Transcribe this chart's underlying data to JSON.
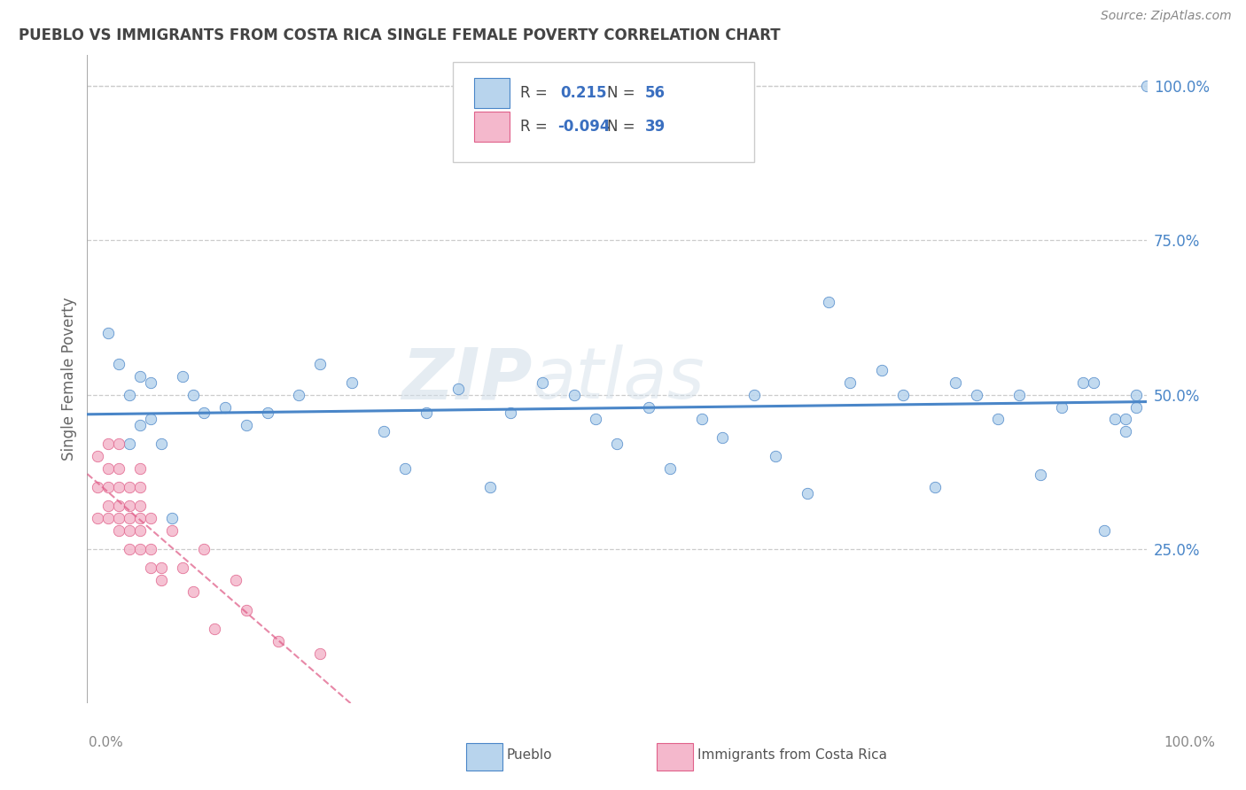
{
  "title": "PUEBLO VS IMMIGRANTS FROM COSTA RICA SINGLE FEMALE POVERTY CORRELATION CHART",
  "source": "Source: ZipAtlas.com",
  "ylabel": "Single Female Poverty",
  "legend_pueblo": "Pueblo",
  "legend_immigrants": "Immigrants from Costa Rica",
  "r_pueblo": 0.215,
  "n_pueblo": 56,
  "r_immigrants": -0.094,
  "n_immigrants": 39,
  "watermark_zip": "ZIP",
  "watermark_atlas": "atlas",
  "pueblo_color": "#b8d4ed",
  "pueblo_line_color": "#4a86c8",
  "immigrants_color": "#f4b8cc",
  "immigrants_line_color": "#e0608a",
  "background_color": "#ffffff",
  "grid_color": "#cccccc",
  "legend_r_color": "#3a6fc0",
  "tick_label_color": "#4a86c8",
  "title_color": "#444444",
  "pueblo_x": [
    0.02,
    0.03,
    0.04,
    0.04,
    0.05,
    0.05,
    0.06,
    0.06,
    0.07,
    0.08,
    0.09,
    0.1,
    0.11,
    0.13,
    0.15,
    0.17,
    0.2,
    0.22,
    0.25,
    0.28,
    0.3,
    0.32,
    0.35,
    0.38,
    0.4,
    0.43,
    0.46,
    0.48,
    0.5,
    0.53,
    0.55,
    0.58,
    0.6,
    0.63,
    0.65,
    0.68,
    0.7,
    0.72,
    0.75,
    0.77,
    0.8,
    0.82,
    0.84,
    0.86,
    0.88,
    0.9,
    0.92,
    0.94,
    0.95,
    0.96,
    0.97,
    0.98,
    0.98,
    0.99,
    0.99,
    1.0
  ],
  "pueblo_y": [
    0.6,
    0.55,
    0.5,
    0.42,
    0.53,
    0.45,
    0.52,
    0.46,
    0.42,
    0.3,
    0.53,
    0.5,
    0.47,
    0.48,
    0.45,
    0.47,
    0.5,
    0.55,
    0.52,
    0.44,
    0.38,
    0.47,
    0.51,
    0.35,
    0.47,
    0.52,
    0.5,
    0.46,
    0.42,
    0.48,
    0.38,
    0.46,
    0.43,
    0.5,
    0.4,
    0.34,
    0.65,
    0.52,
    0.54,
    0.5,
    0.35,
    0.52,
    0.5,
    0.46,
    0.5,
    0.37,
    0.48,
    0.52,
    0.52,
    0.28,
    0.46,
    0.44,
    0.46,
    0.5,
    0.48,
    1.0
  ],
  "immigrants_x": [
    0.01,
    0.01,
    0.01,
    0.02,
    0.02,
    0.02,
    0.02,
    0.02,
    0.03,
    0.03,
    0.03,
    0.03,
    0.03,
    0.03,
    0.04,
    0.04,
    0.04,
    0.04,
    0.04,
    0.05,
    0.05,
    0.05,
    0.05,
    0.05,
    0.05,
    0.06,
    0.06,
    0.06,
    0.07,
    0.07,
    0.08,
    0.09,
    0.1,
    0.11,
    0.12,
    0.14,
    0.15,
    0.18,
    0.22
  ],
  "immigrants_y": [
    0.3,
    0.35,
    0.4,
    0.3,
    0.32,
    0.35,
    0.38,
    0.42,
    0.28,
    0.3,
    0.32,
    0.35,
    0.38,
    0.42,
    0.25,
    0.28,
    0.3,
    0.32,
    0.35,
    0.25,
    0.28,
    0.3,
    0.32,
    0.35,
    0.38,
    0.22,
    0.25,
    0.3,
    0.2,
    0.22,
    0.28,
    0.22,
    0.18,
    0.25,
    0.12,
    0.2,
    0.15,
    0.1,
    0.08
  ],
  "xlim": [
    0.0,
    1.0
  ],
  "ylim": [
    0.0,
    1.05
  ],
  "yticks": [
    0.25,
    0.5,
    0.75,
    1.0
  ],
  "ytick_labels": [
    "25.0%",
    "50.0%",
    "75.0%",
    "100.0%"
  ]
}
